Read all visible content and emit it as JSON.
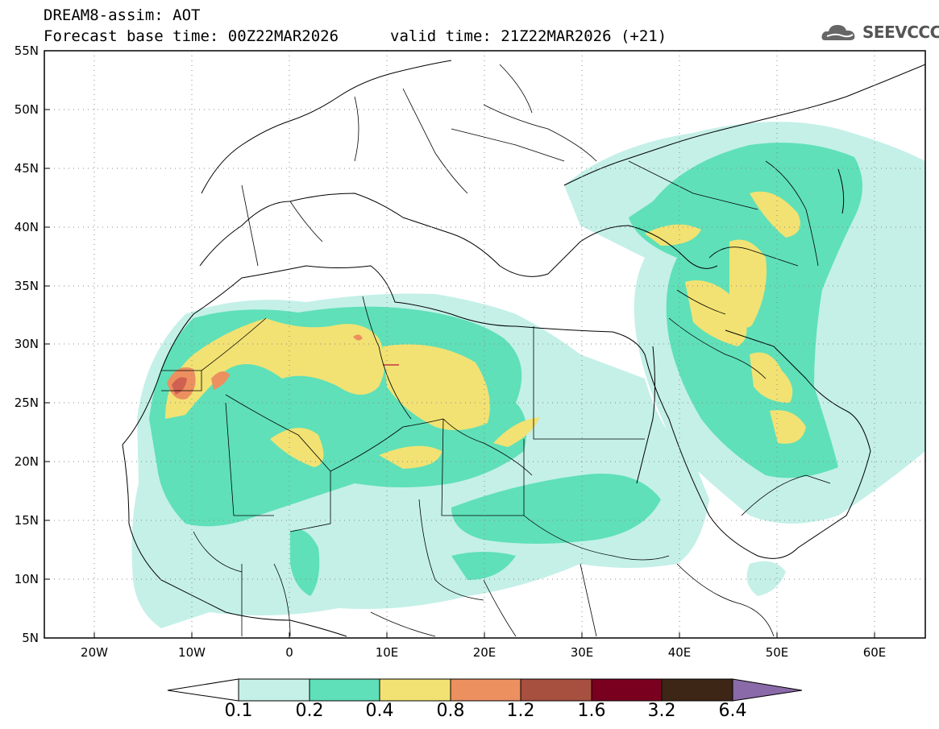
{
  "header": {
    "model_line": "DREAM8-assim: AOT",
    "base_time_line": "Forecast base time: 00Z22MAR2026",
    "valid_time_line": "valid time: 21Z22MAR2026 (+21)"
  },
  "logo": {
    "text": "SEEVCCC",
    "icon": "cloud-icon"
  },
  "map": {
    "lat_labels": [
      "55N",
      "50N",
      "45N",
      "40N",
      "35N",
      "30N",
      "25N",
      "20N",
      "15N",
      "10N",
      "5N"
    ],
    "lon_labels": [
      "20W",
      "10W",
      "0",
      "10E",
      "20E",
      "30E",
      "40E",
      "50E",
      "60E"
    ],
    "lat_range": [
      5,
      55
    ],
    "lon_range": [
      -25,
      65
    ],
    "grid": "dotted"
  },
  "colorbar": {
    "levels": [
      "0.1",
      "0.2",
      "0.4",
      "0.8",
      "1.2",
      "1.6",
      "3.2",
      "6.4"
    ],
    "colors": [
      "#ffffff",
      "#c4f0e8",
      "#5fe0b8",
      "#f2e273",
      "#ec9060",
      "#a85040",
      "#7a0020",
      "#3d2616",
      "#8a6aa8"
    ]
  }
}
